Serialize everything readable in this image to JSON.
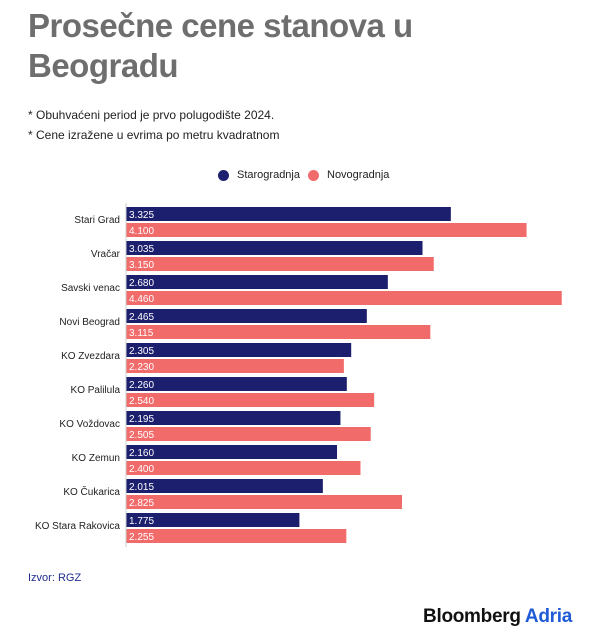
{
  "title": "Prosečne cene stanova u Beogradu",
  "notes": [
    "* Obuhvaćeni period je prvo polugodište 2024.",
    "* Cene izražene u evrima po metru kvadratnom"
  ],
  "source": "Izvor: RGZ",
  "logo": {
    "main": "Bloomberg",
    "accent": "Adria"
  },
  "colors": {
    "starogradnja": "#1c1f6e",
    "novogradnja": "#f26b6b",
    "title": "#6e6e6e"
  },
  "chart_data": {
    "type": "bar",
    "orientation": "horizontal",
    "categories": [
      "Stari Grad",
      "Vračar",
      "Savski venac",
      "Novi Beograd",
      "KO Zvezdara",
      "KO Palilula",
      "KO Voždovac",
      "KO Zemun",
      "KO Čukarica",
      "KO Stara Rakovica"
    ],
    "series": [
      {
        "name": "Starogradnja",
        "color": "#1c1f6e",
        "values": [
          3325,
          3035,
          2680,
          2465,
          2305,
          2260,
          2195,
          2160,
          2015,
          1775
        ],
        "labels": [
          "3.325",
          "3.035",
          "2.680",
          "2.465",
          "2.305",
          "2.260",
          "2.195",
          "2.160",
          "2.015",
          "1.775"
        ]
      },
      {
        "name": "Novogradnja",
        "color": "#f26b6b",
        "values": [
          4100,
          3150,
          4460,
          3115,
          2230,
          2540,
          2505,
          2400,
          2825,
          2255
        ],
        "labels": [
          "4.100",
          "3.150",
          "4.460",
          "3.115",
          "2.230",
          "2.540",
          "2.505",
          "2.400",
          "2.825",
          "2.255"
        ]
      }
    ],
    "legend": "top-center",
    "grid": false
  }
}
